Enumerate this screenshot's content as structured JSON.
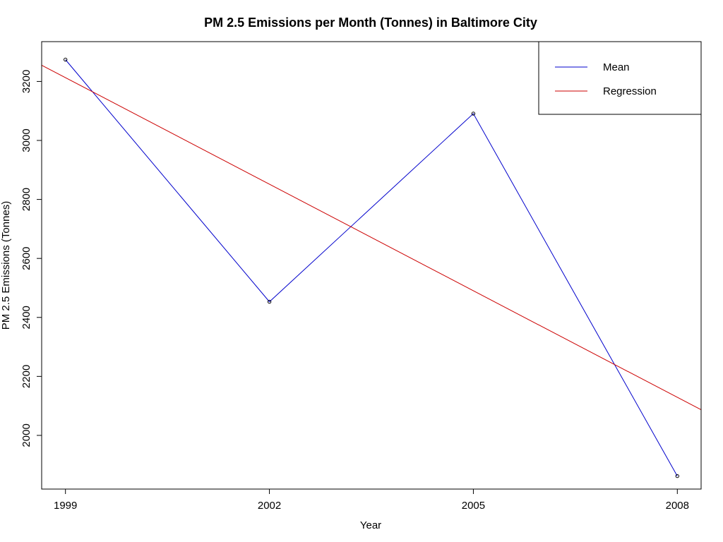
{
  "chart_data": {
    "type": "line",
    "title": "PM 2.5 Emissions per Month (Tonnes) in Baltimore City",
    "xlabel": "Year",
    "ylabel": "PM 2.5 Emissions (Tonnes)",
    "x": [
      1999,
      2002,
      2005,
      2008
    ],
    "x_tick_labels": [
      "1999",
      "2002",
      "2005",
      "2008"
    ],
    "y_ticks": [
      2000,
      2200,
      2400,
      2600,
      2800,
      3000,
      3200
    ],
    "y_tick_labels": [
      "2000",
      "2200",
      "2400",
      "2600",
      "2800",
      "3000",
      "3200"
    ],
    "xlim": [
      1998.65,
      2008.35
    ],
    "ylim": [
      1818,
      3335
    ],
    "grid": false,
    "legend_position": "top-right",
    "series": [
      {
        "name": "Mean",
        "color": "#0000cc",
        "markers": "open-circle",
        "x": [
          1999,
          2002,
          2005,
          2008
        ],
        "values": [
          3274,
          2453,
          3091,
          1862
        ]
      },
      {
        "name": "Regression",
        "color": "#cc0000",
        "markers": "none",
        "x": [
          1998.65,
          2008.35
        ],
        "values": [
          3255,
          2087
        ]
      }
    ]
  }
}
